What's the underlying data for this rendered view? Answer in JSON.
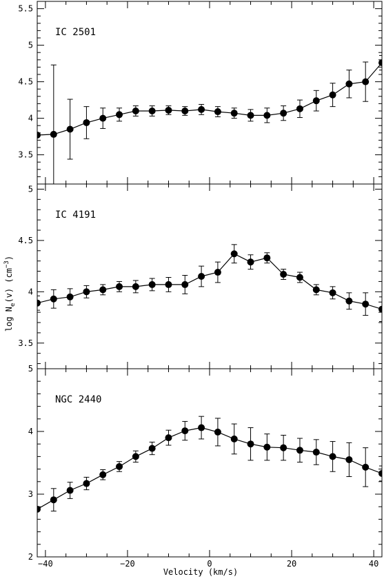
{
  "chart_data": {
    "type": "line",
    "xlabel": "Velocity (km/s)",
    "ylabel": "log N_e(v) (cm^-3)",
    "ylabel_parts": {
      "main": "log N",
      "sub": "e",
      "mid": "(v) (cm",
      "sup": "−3",
      "end": ")"
    },
    "xlim": [
      -42,
      42
    ],
    "x_ticks": [
      -40,
      -20,
      0,
      20,
      40
    ],
    "x_tick_labels": [
      "−40",
      "−20",
      "0",
      "20",
      "40"
    ],
    "panels": [
      {
        "label": "IC 2501",
        "ylim": [
          3.1,
          5.6
        ],
        "y_ticks": [
          3.5,
          4,
          4.5,
          5,
          5.5
        ],
        "y_tick_labels": [
          "3.5",
          "4",
          "4.5",
          "5",
          "5.5"
        ],
        "x": [
          -42,
          -38,
          -34,
          -30,
          -26,
          -22,
          -18,
          -14,
          -10,
          -6,
          -2,
          2,
          6,
          10,
          14,
          18,
          22,
          26,
          30,
          34,
          38,
          42
        ],
        "y": [
          3.77,
          3.78,
          3.85,
          3.94,
          4.0,
          4.05,
          4.1,
          4.1,
          4.11,
          4.1,
          4.12,
          4.09,
          4.07,
          4.04,
          4.04,
          4.07,
          4.13,
          4.24,
          4.32,
          4.47,
          4.5,
          4.76
        ],
        "err": [
          0.0,
          0.95,
          0.41,
          0.22,
          0.14,
          0.09,
          0.07,
          0.07,
          0.06,
          0.06,
          0.07,
          0.07,
          0.07,
          0.08,
          0.1,
          0.1,
          0.12,
          0.14,
          0.16,
          0.19,
          0.27,
          0.1
        ]
      },
      {
        "label": "IC 4191",
        "ylim": [
          3.25,
          5.05
        ],
        "y_ticks": [
          3.5,
          4,
          4.5,
          5
        ],
        "y_tick_labels": [
          "3.5",
          "4",
          "4.5",
          "5"
        ],
        "x": [
          -42,
          -38,
          -34,
          -30,
          -26,
          -22,
          -18,
          -14,
          -10,
          -6,
          -2,
          2,
          6,
          10,
          14,
          18,
          22,
          26,
          30,
          34,
          38,
          42
        ],
        "y": [
          3.89,
          3.93,
          3.95,
          4.0,
          4.02,
          4.05,
          4.05,
          4.07,
          4.07,
          4.07,
          4.15,
          4.19,
          4.37,
          4.29,
          4.33,
          4.17,
          4.14,
          4.02,
          3.99,
          3.91,
          3.88,
          3.83
        ],
        "err": [
          0.07,
          0.09,
          0.08,
          0.06,
          0.05,
          0.05,
          0.06,
          0.06,
          0.07,
          0.09,
          0.1,
          0.1,
          0.09,
          0.07,
          0.05,
          0.05,
          0.05,
          0.05,
          0.06,
          0.08,
          0.11,
          0.12
        ]
      },
      {
        "label": "NGC 2440",
        "ylim": [
          2.0,
          5.0
        ],
        "y_ticks": [
          2,
          3,
          4,
          5
        ],
        "y_tick_labels": [
          "2",
          "3",
          "4",
          "5"
        ],
        "x": [
          -42,
          -38,
          -34,
          -30,
          -26,
          -22,
          -18,
          -14,
          -10,
          -6,
          -2,
          2,
          6,
          10,
          14,
          18,
          22,
          26,
          30,
          34,
          38,
          42
        ],
        "y": [
          2.76,
          2.91,
          3.06,
          3.17,
          3.31,
          3.44,
          3.6,
          3.73,
          3.9,
          4.01,
          4.06,
          3.99,
          3.88,
          3.8,
          3.75,
          3.74,
          3.7,
          3.67,
          3.6,
          3.55,
          3.43,
          3.33
        ],
        "err": [
          0.0,
          0.18,
          0.13,
          0.1,
          0.08,
          0.08,
          0.09,
          0.1,
          0.12,
          0.15,
          0.18,
          0.22,
          0.24,
          0.26,
          0.21,
          0.2,
          0.19,
          0.2,
          0.24,
          0.27,
          0.31,
          0.12
        ]
      }
    ]
  },
  "colors": {
    "ink": "#000000",
    "background": "#ffffff"
  }
}
